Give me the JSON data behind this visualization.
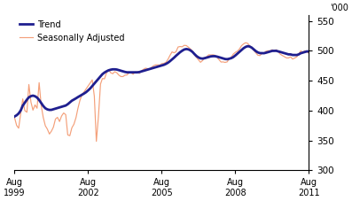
{
  "ylabel_right": "’000",
  "ylim": [
    300,
    560
  ],
  "yticks": [
    300,
    350,
    400,
    450,
    500,
    550
  ],
  "trend_color": "#1f1f8f",
  "seasonal_color": "#f4a07a",
  "trend_linewidth": 2.0,
  "seasonal_linewidth": 0.85,
  "legend_entries": [
    "Trend",
    "Seasonally Adjusted"
  ],
  "background_color": "#ffffff",
  "trend_data": [
    390,
    392,
    395,
    400,
    408,
    413,
    418,
    422,
    424,
    425,
    424,
    422,
    418,
    413,
    408,
    404,
    402,
    401,
    401,
    402,
    403,
    404,
    405,
    406,
    407,
    408,
    410,
    413,
    416,
    418,
    420,
    422,
    424,
    426,
    428,
    430,
    433,
    436,
    440,
    444,
    448,
    452,
    456,
    460,
    463,
    465,
    467,
    468,
    469,
    469,
    469,
    468,
    467,
    466,
    465,
    464,
    464,
    464,
    464,
    464,
    464,
    464,
    465,
    466,
    467,
    468,
    469,
    470,
    471,
    472,
    473,
    474,
    475,
    476,
    477,
    479,
    481,
    484,
    487,
    490,
    493,
    496,
    499,
    501,
    503,
    503,
    502,
    500,
    497,
    493,
    490,
    488,
    487,
    487,
    488,
    489,
    490,
    491,
    491,
    491,
    490,
    489,
    488,
    487,
    486,
    486,
    487,
    488,
    490,
    493,
    496,
    499,
    502,
    505,
    507,
    508,
    507,
    505,
    502,
    499,
    497,
    496,
    496,
    496,
    497,
    498,
    499,
    500,
    500,
    500,
    499,
    498,
    497,
    496,
    495,
    494,
    494,
    493,
    493,
    493,
    494,
    496,
    497,
    498,
    499,
    499
  ],
  "seasonal_data": [
    388,
    375,
    370,
    395,
    420,
    400,
    395,
    445,
    415,
    400,
    410,
    400,
    450,
    410,
    390,
    375,
    370,
    360,
    365,
    370,
    385,
    390,
    380,
    390,
    395,
    400,
    360,
    355,
    370,
    375,
    385,
    400,
    415,
    425,
    430,
    435,
    440,
    445,
    450,
    455,
    340,
    370,
    440,
    455,
    450,
    460,
    470,
    465,
    460,
    465,
    465,
    460,
    458,
    455,
    460,
    458,
    462,
    465,
    460,
    462,
    468,
    460,
    465,
    468,
    470,
    472,
    468,
    470,
    475,
    475,
    478,
    475,
    477,
    480,
    478,
    483,
    488,
    496,
    500,
    494,
    502,
    510,
    505,
    508,
    510,
    508,
    505,
    502,
    498,
    490,
    488,
    482,
    480,
    486,
    490,
    490,
    495,
    492,
    494,
    492,
    488,
    484,
    480,
    482,
    480,
    482,
    488,
    490,
    496,
    498,
    500,
    504,
    510,
    512,
    514,
    512,
    508,
    504,
    500,
    496,
    492,
    492,
    496,
    496,
    500,
    500,
    500,
    502,
    500,
    502,
    498,
    494,
    492,
    490,
    488,
    488,
    490,
    486,
    488,
    490,
    494,
    500,
    498,
    500,
    498,
    496
  ]
}
